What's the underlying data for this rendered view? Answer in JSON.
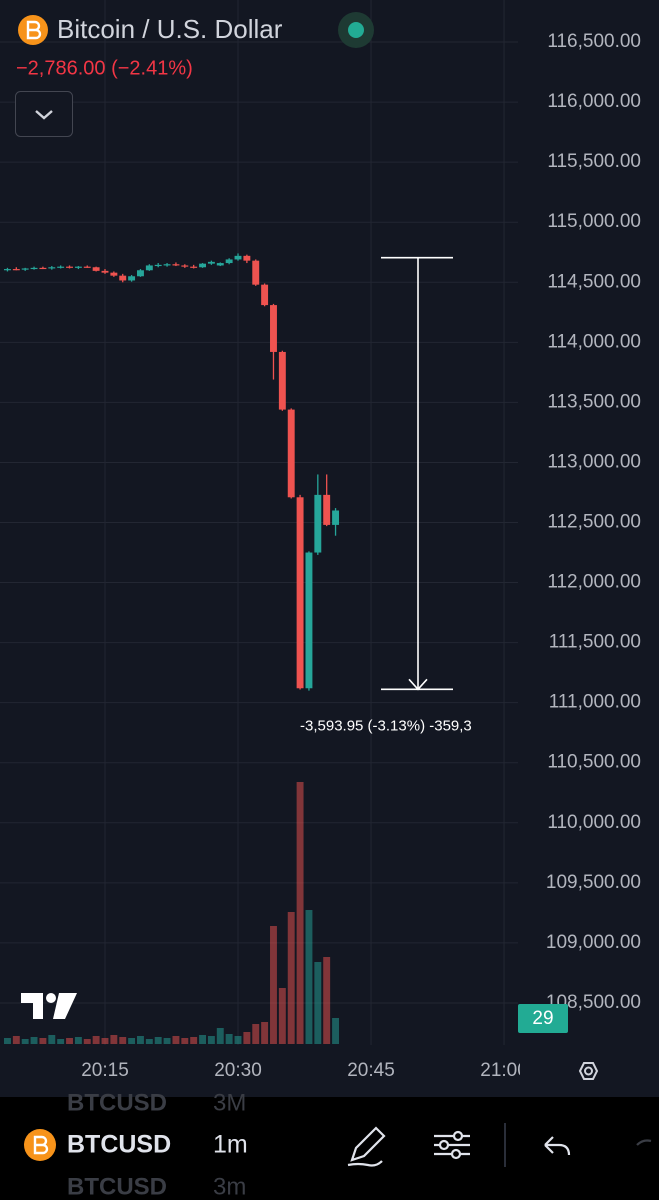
{
  "header": {
    "title": "Bitcoin / U.S. Dollar",
    "change": "−2,786.00 (−2.41%)"
  },
  "chart_data": {
    "type": "candlestick",
    "x": [
      0,
      1,
      2,
      3,
      4,
      5,
      6,
      7,
      8,
      9,
      10,
      11,
      12,
      13,
      14,
      15,
      16,
      17,
      18,
      19,
      20,
      21,
      22,
      23,
      24,
      25,
      26,
      27,
      28,
      29,
      30,
      31,
      32,
      33,
      34,
      35,
      36,
      37
    ],
    "open": [
      114600,
      114610,
      114605,
      114615,
      114620,
      114615,
      114625,
      114630,
      114620,
      114630,
      114625,
      114595,
      114580,
      114555,
      114515,
      114550,
      114600,
      114640,
      114645,
      114650,
      114640,
      114630,
      114625,
      114655,
      114640,
      114660,
      114690,
      114720,
      114680,
      114480,
      114310,
      113920,
      113440,
      112710,
      111120,
      112250,
      112730,
      112480
    ],
    "high": [
      114620,
      114625,
      114620,
      114630,
      114630,
      114635,
      114640,
      114640,
      114635,
      114640,
      114630,
      114610,
      114590,
      114570,
      114560,
      114610,
      114650,
      114660,
      114660,
      114665,
      114650,
      114645,
      114660,
      114680,
      114665,
      114700,
      114740,
      114730,
      114690,
      114490,
      114320,
      113930,
      113450,
      112730,
      112260,
      112900,
      112900,
      112620
    ],
    "low": [
      114590,
      114600,
      114595,
      114605,
      114610,
      114605,
      114615,
      114615,
      114610,
      114620,
      114590,
      114570,
      114545,
      114500,
      114505,
      114545,
      114595,
      114625,
      114630,
      114635,
      114620,
      114615,
      114620,
      114645,
      114635,
      114650,
      114680,
      114660,
      114470,
      114300,
      113690,
      113430,
      112700,
      111110,
      111100,
      112230,
      112470,
      112390
    ],
    "close": [
      114610,
      114605,
      114615,
      114620,
      114615,
      114625,
      114630,
      114620,
      114630,
      114625,
      114595,
      114580,
      114555,
      114515,
      114550,
      114600,
      114640,
      114645,
      114650,
      114640,
      114630,
      114625,
      114655,
      114670,
      114660,
      114690,
      114720,
      114680,
      114480,
      114310,
      113920,
      113440,
      112710,
      111120,
      112250,
      112730,
      112480,
      112600
    ],
    "volume": [
      6,
      8,
      5,
      7,
      6,
      9,
      5,
      6,
      7,
      5,
      8,
      6,
      9,
      7,
      6,
      8,
      5,
      7,
      6,
      8,
      6,
      7,
      9,
      8,
      16,
      10,
      8,
      12,
      20,
      22,
      118,
      56,
      132,
      262,
      134,
      82,
      87,
      26
    ],
    "up_color": "#26a69a",
    "down_color": "#ef5350",
    "ylim": [
      108150,
      116850
    ],
    "yticks": [
      {
        "value": 116500,
        "label": "116,500.00"
      },
      {
        "value": 116000,
        "label": "116,000.00"
      },
      {
        "value": 115500,
        "label": "115,500.00"
      },
      {
        "value": 115000,
        "label": "115,000.00"
      },
      {
        "value": 114500,
        "label": "114,500.00"
      },
      {
        "value": 114000,
        "label": "114,000.00"
      },
      {
        "value": 113500,
        "label": "113,500.00"
      },
      {
        "value": 113000,
        "label": "113,000.00"
      },
      {
        "value": 112500,
        "label": "112,500.00"
      },
      {
        "value": 112000,
        "label": "112,000.00"
      },
      {
        "value": 111500,
        "label": "111,500.00"
      },
      {
        "value": 111000,
        "label": "111,000.00"
      },
      {
        "value": 110500,
        "label": "110,500.00"
      },
      {
        "value": 110000,
        "label": "110,000.00"
      },
      {
        "value": 109500,
        "label": "109,500.00"
      },
      {
        "value": 109000,
        "label": "109,000.00"
      },
      {
        "value": 108500,
        "label": "108,500.00"
      }
    ],
    "xlim": [
      -0.84,
      57.8
    ],
    "xticks": [
      {
        "value": 11,
        "label": "20:15"
      },
      {
        "value": 26,
        "label": "20:30"
      },
      {
        "value": 41,
        "label": "20:45"
      },
      {
        "value": 56,
        "label": "21:00"
      }
    ],
    "y2lim": [
      0,
      300
    ],
    "grid": true,
    "measure": {
      "from": 114705.0,
      "to": 111111.05,
      "label": "-3,593.95 (-3.13%) -359,3"
    },
    "countdown": 29
  },
  "footer": {
    "symbol": "BTCUSD",
    "interval": "1m",
    "ghost_symbol_above": "BTCUSD",
    "ghost_interval_above": "3M",
    "ghost_symbol_below": "BTCUSD",
    "ghost_interval_below": "3m"
  }
}
